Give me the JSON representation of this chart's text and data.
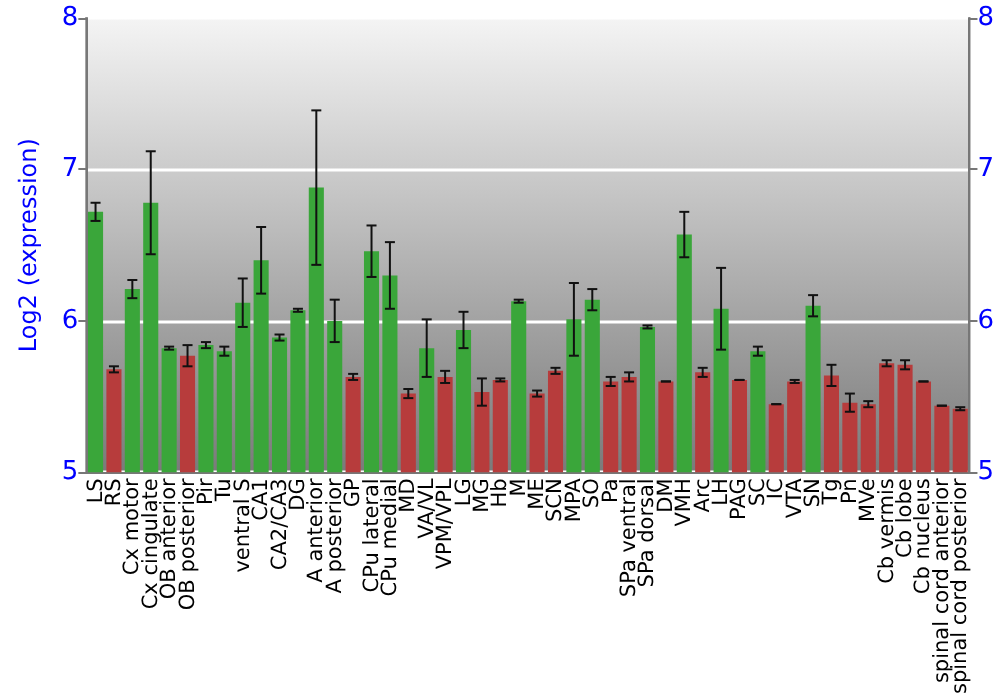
{
  "chart_data": {
    "type": "bar",
    "ylabel": "Log2 (expression)",
    "categories": [
      "LS",
      "RS",
      "Cx motor",
      "Cx cingulate",
      "OB anterior",
      "OB posterior",
      "Pir",
      "Tu",
      "ventral S",
      "CA1",
      "CA2/CA3",
      "DG",
      "A anterior",
      "A posterior",
      "GP",
      "CPu lateral",
      "CPu medial",
      "MD",
      "VA/VL",
      "VPM/VPL",
      "LG",
      "MG",
      "Hb",
      "M",
      "ME",
      "SCN",
      "MPA",
      "SO",
      "Pa",
      "SPa ventral",
      "SPa dorsal",
      "DM",
      "VMH",
      "Arc",
      "LH",
      "PAG",
      "SC",
      "IC",
      "VTA",
      "SN",
      "Tg",
      "Pn",
      "MVe",
      "Cb vermis",
      "Cb lobe",
      "Cb nucleus",
      "spinal cord anterior",
      "spinal cord posterior"
    ],
    "values": [
      6.72,
      5.68,
      6.21,
      6.78,
      5.82,
      5.77,
      5.84,
      5.8,
      6.12,
      6.4,
      5.89,
      6.07,
      6.88,
      6.0,
      5.63,
      6.46,
      6.3,
      5.52,
      5.82,
      5.63,
      5.94,
      5.53,
      5.61,
      6.13,
      5.52,
      5.67,
      6.01,
      6.14,
      5.6,
      5.63,
      5.96,
      5.6,
      6.57,
      5.66,
      6.08,
      5.61,
      5.8,
      5.45,
      5.6,
      6.1,
      5.64,
      5.46,
      5.45,
      5.72,
      5.71,
      5.6,
      5.44,
      5.42
    ],
    "errors": [
      0.06,
      0.02,
      0.06,
      0.34,
      0.01,
      0.07,
      0.02,
      0.03,
      0.16,
      0.22,
      0.02,
      0.01,
      0.51,
      0.14,
      0.02,
      0.17,
      0.22,
      0.03,
      0.19,
      0.04,
      0.12,
      0.09,
      0.01,
      0.01,
      0.02,
      0.02,
      0.24,
      0.07,
      0.03,
      0.03,
      0.01,
      null,
      0.15,
      0.03,
      0.27,
      null,
      0.03,
      null,
      0.01,
      0.07,
      0.07,
      0.06,
      0.02,
      0.02,
      0.03,
      null,
      null,
      0.01
    ],
    "colors": [
      "#3aa63a",
      "#b73c3c",
      "#3aa63a",
      "#3aa63a",
      "#3aa63a",
      "#b73c3c",
      "#3aa63a",
      "#3aa63a",
      "#3aa63a",
      "#3aa63a",
      "#3aa63a",
      "#3aa63a",
      "#3aa63a",
      "#3aa63a",
      "#b73c3c",
      "#3aa63a",
      "#3aa63a",
      "#b73c3c",
      "#3aa63a",
      "#b73c3c",
      "#3aa63a",
      "#b73c3c",
      "#b73c3c",
      "#3aa63a",
      "#b73c3c",
      "#b73c3c",
      "#3aa63a",
      "#3aa63a",
      "#b73c3c",
      "#b73c3c",
      "#3aa63a",
      "#b73c3c",
      "#3aa63a",
      "#b73c3c",
      "#3aa63a",
      "#b73c3c",
      "#3aa63a",
      "#b73c3c",
      "#b73c3c",
      "#3aa63a",
      "#b73c3c",
      "#b73c3c",
      "#b73c3c",
      "#b73c3c",
      "#b73c3c",
      "#b73c3c",
      "#b73c3c",
      "#b73c3c"
    ],
    "ylim": [
      5,
      8
    ],
    "yticks": [
      5,
      6,
      7,
      8
    ],
    "y2lim": [
      5,
      8
    ],
    "y2ticks": [
      5,
      6,
      7,
      8
    ],
    "grid": "y"
  }
}
